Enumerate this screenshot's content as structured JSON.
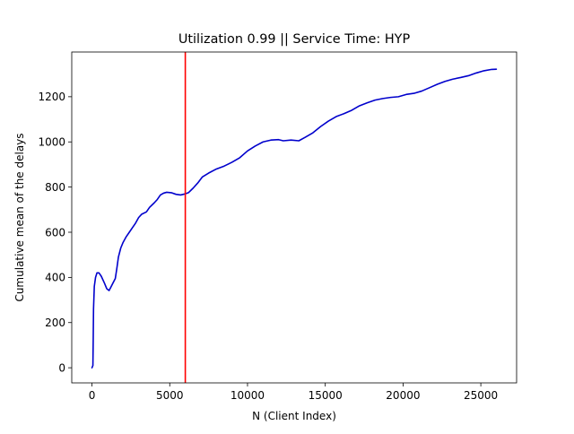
{
  "chart_data": {
    "type": "line",
    "title": "Utilization 0.99 || Service Time: HYP",
    "xlabel": "N (Client Index)",
    "ylabel": "Cumulative mean of the delays",
    "xlim": [
      -1300,
      27300
    ],
    "ylim": [
      -67,
      1398
    ],
    "xticks": [
      0,
      5000,
      10000,
      15000,
      20000,
      25000
    ],
    "xtick_labels": [
      "0",
      "5000",
      "10000",
      "15000",
      "20000",
      "25000"
    ],
    "yticks": [
      0,
      200,
      400,
      600,
      800,
      1000,
      1200
    ],
    "ytick_labels": [
      "0",
      "200",
      "400",
      "600",
      "800",
      "1000",
      "1200"
    ],
    "grid": false,
    "legend": "none",
    "series": [
      {
        "color": "#0000cc",
        "points": [
          [
            0,
            0
          ],
          [
            60,
            10
          ],
          [
            80,
            120
          ],
          [
            100,
            260
          ],
          [
            150,
            360
          ],
          [
            230,
            400
          ],
          [
            320,
            420
          ],
          [
            450,
            420
          ],
          [
            600,
            405
          ],
          [
            800,
            375
          ],
          [
            950,
            350
          ],
          [
            1100,
            342
          ],
          [
            1200,
            355
          ],
          [
            1350,
            375
          ],
          [
            1500,
            395
          ],
          [
            1600,
            440
          ],
          [
            1700,
            490
          ],
          [
            1850,
            530
          ],
          [
            2000,
            555
          ],
          [
            2200,
            580
          ],
          [
            2400,
            600
          ],
          [
            2600,
            620
          ],
          [
            2800,
            640
          ],
          [
            3000,
            665
          ],
          [
            3200,
            680
          ],
          [
            3500,
            690
          ],
          [
            3700,
            710
          ],
          [
            4000,
            730
          ],
          [
            4200,
            745
          ],
          [
            4400,
            765
          ],
          [
            4600,
            773
          ],
          [
            4800,
            777
          ],
          [
            5100,
            775
          ],
          [
            5400,
            768
          ],
          [
            5700,
            765
          ],
          [
            6000,
            770
          ],
          [
            6200,
            775
          ],
          [
            6500,
            795
          ],
          [
            6800,
            818
          ],
          [
            7100,
            845
          ],
          [
            7500,
            862
          ],
          [
            8000,
            880
          ],
          [
            8500,
            893
          ],
          [
            9000,
            910
          ],
          [
            9500,
            930
          ],
          [
            10000,
            960
          ],
          [
            10500,
            982
          ],
          [
            11000,
            1000
          ],
          [
            11500,
            1008
          ],
          [
            12000,
            1010
          ],
          [
            12300,
            1005
          ],
          [
            12800,
            1008
          ],
          [
            13300,
            1005
          ],
          [
            13700,
            1020
          ],
          [
            14200,
            1040
          ],
          [
            14700,
            1068
          ],
          [
            15200,
            1092
          ],
          [
            15700,
            1112
          ],
          [
            16200,
            1125
          ],
          [
            16700,
            1140
          ],
          [
            17200,
            1160
          ],
          [
            17700,
            1173
          ],
          [
            18200,
            1185
          ],
          [
            18700,
            1192
          ],
          [
            19200,
            1197
          ],
          [
            19700,
            1200
          ],
          [
            20200,
            1210
          ],
          [
            20700,
            1215
          ],
          [
            21200,
            1225
          ],
          [
            21700,
            1240
          ],
          [
            22200,
            1255
          ],
          [
            22700,
            1268
          ],
          [
            23200,
            1278
          ],
          [
            23700,
            1285
          ],
          [
            24200,
            1293
          ],
          [
            24700,
            1305
          ],
          [
            25200,
            1315
          ],
          [
            25700,
            1321
          ],
          [
            26000,
            1322
          ]
        ]
      }
    ],
    "vlines": [
      {
        "x": 6000,
        "color": "#ff0000"
      }
    ]
  }
}
